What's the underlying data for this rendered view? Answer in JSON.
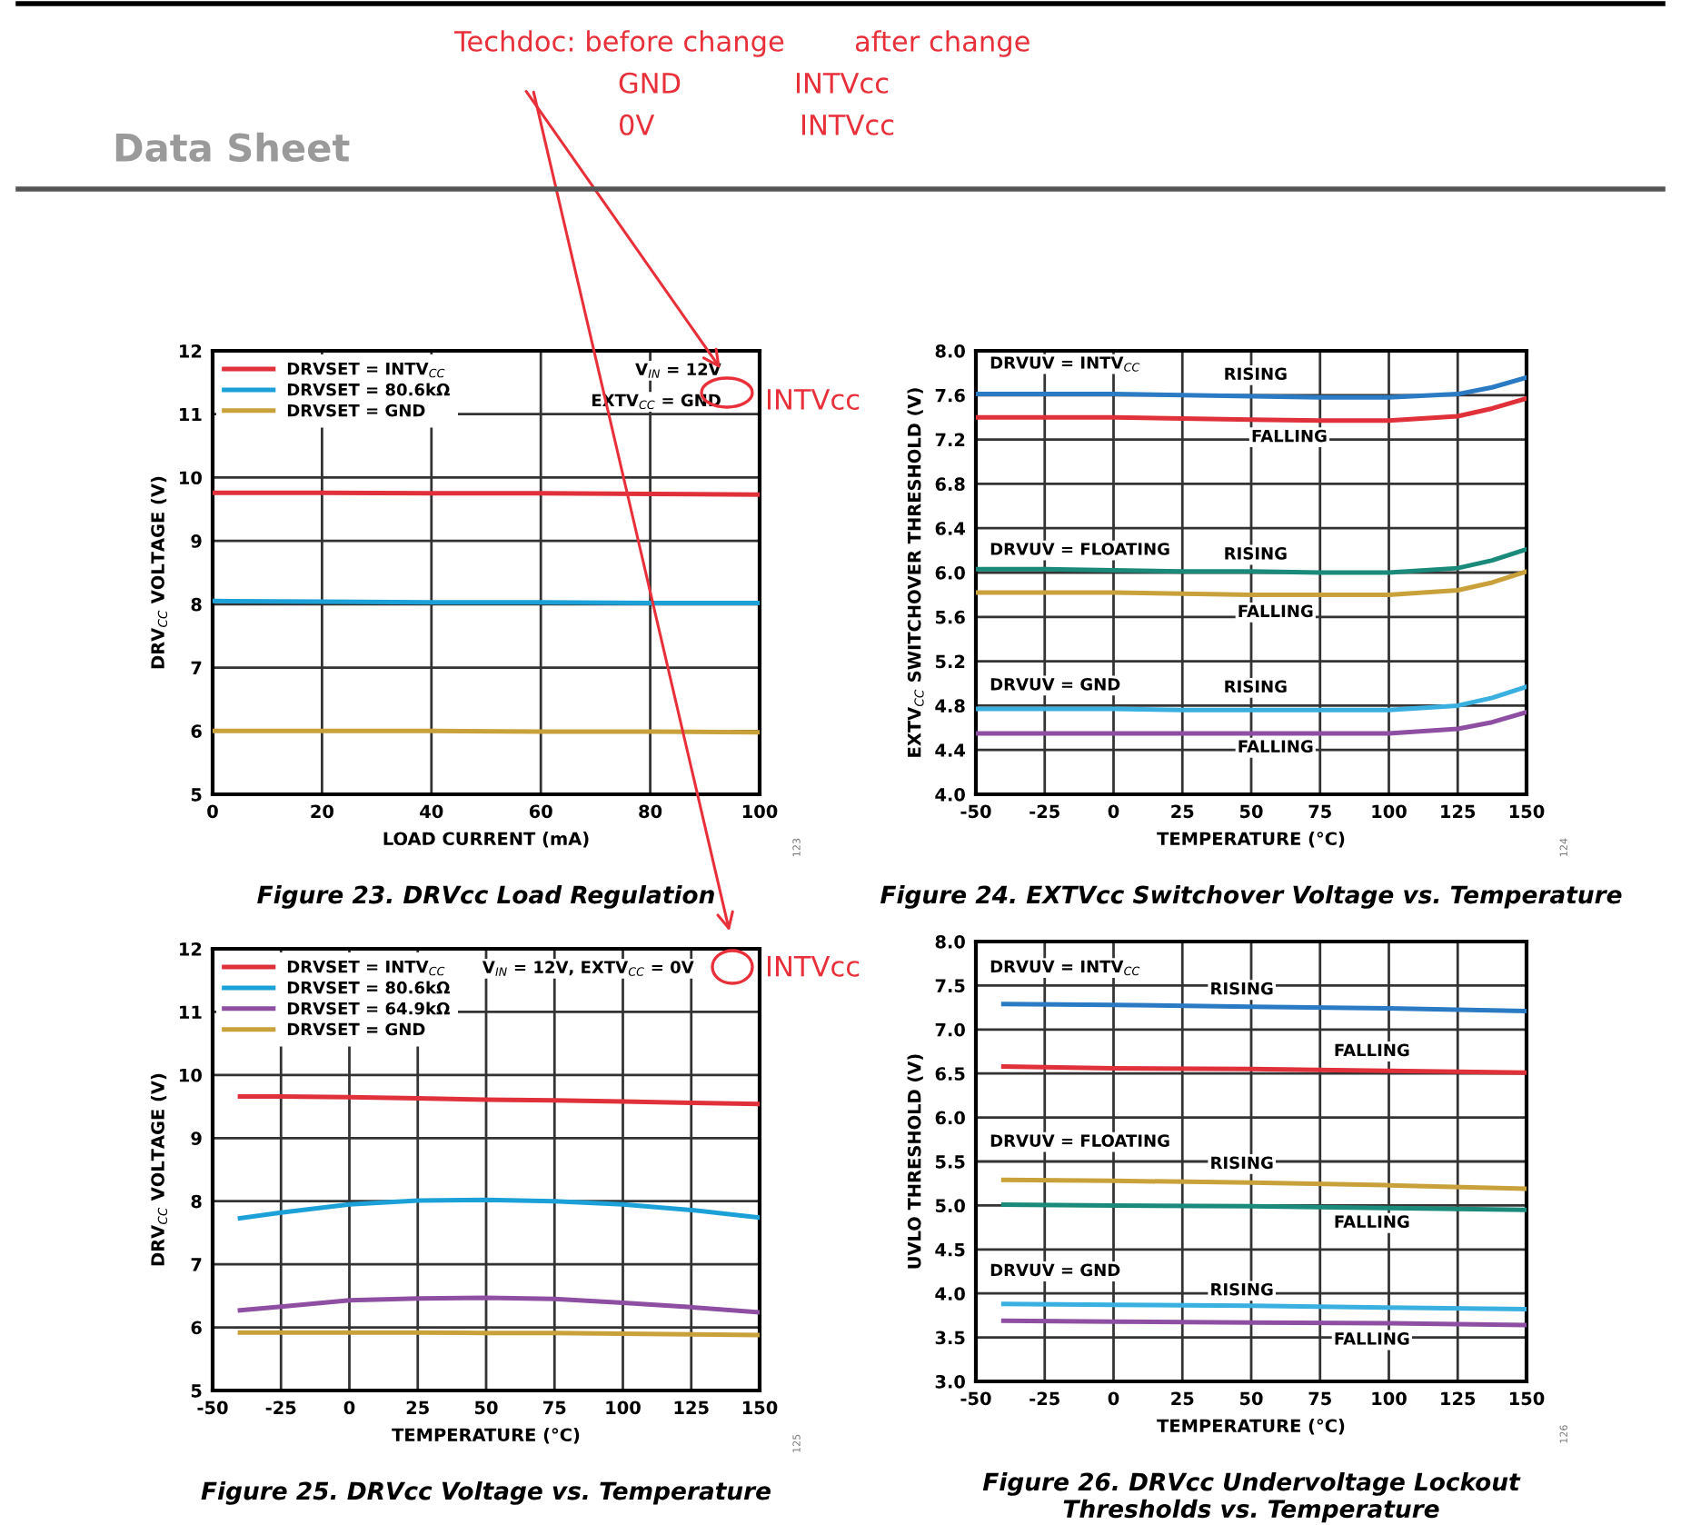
{
  "chart_data": [
    {
      "type": "other",
      "title": "Data Sheet",
      "annotations": [
        "Techdoc: before change",
        "after change",
        "GND",
        "INTVcc",
        "0V",
        "INTVcc"
      ]
    },
    {
      "type": "line",
      "title": "Figure 23. DRVcc Load Regulation",
      "xlabel": "LOAD CURRENT (mA)",
      "ylabel": "DRV$_{CC}$ VOLTAGE (V)",
      "x": [
        0,
        20,
        40,
        60,
        80,
        100
      ],
      "xlim": [
        0,
        100
      ],
      "xticks": [
        0,
        20,
        40,
        60,
        80,
        100
      ],
      "ylim": [
        5,
        12
      ],
      "yticks": [
        5,
        6,
        7,
        8,
        9,
        10,
        11,
        12
      ],
      "grid": true,
      "legend": "top left",
      "series": [
        {
          "name": "DRVSET = INTV$_{CC}$",
          "color": "#e0303a",
          "values": [
            9.76,
            9.76,
            9.75,
            9.75,
            9.74,
            9.73
          ]
        },
        {
          "name": "DRVSET = 80.6kΩ",
          "color": "#1ba1d8",
          "values": [
            8.05,
            8.04,
            8.03,
            8.03,
            8.02,
            8.02
          ]
        },
        {
          "name": "DRVSET = GND",
          "color": "#c9a13a",
          "values": [
            6.0,
            6.0,
            6.0,
            5.99,
            5.99,
            5.98
          ]
        }
      ],
      "annotations": [
        "V$_{IN}$ = 12V",
        "EXTV$_{CC}$ = GND",
        "INTVcc",
        "123"
      ]
    },
    {
      "type": "line",
      "title": "Figure 24. EXTVcc Switchover Voltage vs. Temperature",
      "xlabel": "TEMPERATURE (°C)",
      "ylabel": "EXTV$_{CC}$ SWITCHOVER THRESHOLD (V)",
      "x": [
        -50,
        -25,
        0,
        25,
        50,
        75,
        100,
        125,
        137.5,
        150
      ],
      "xlim": [
        -50,
        150
      ],
      "xticks": [
        -50,
        -25,
        0,
        25,
        50,
        75,
        100,
        125,
        150
      ],
      "ylim": [
        4,
        8
      ],
      "yticks": [
        {
          "value": 4,
          "label": "4.0"
        },
        4.4,
        4.8,
        5.2,
        5.6,
        {
          "value": 6,
          "label": "6.0"
        },
        6.4,
        6.8,
        7.2,
        7.6,
        {
          "value": 8,
          "label": "8.0"
        }
      ],
      "grid": true,
      "series": [
        {
          "color": "#2b7bc4",
          "values": [
            7.61,
            7.61,
            7.61,
            7.6,
            7.59,
            7.58,
            7.58,
            7.61,
            7.67,
            7.76
          ]
        },
        {
          "color": "#e0303a",
          "values": [
            7.4,
            7.4,
            7.4,
            7.39,
            7.38,
            7.37,
            7.37,
            7.41,
            7.48,
            7.57
          ]
        },
        {
          "color": "#1a8a7a",
          "values": [
            6.03,
            6.03,
            6.02,
            6.01,
            6.01,
            6.0,
            6.0,
            6.04,
            6.11,
            6.21
          ]
        },
        {
          "color": "#c9a13a",
          "values": [
            5.82,
            5.82,
            5.82,
            5.81,
            5.8,
            5.8,
            5.8,
            5.84,
            5.91,
            6.01
          ]
        },
        {
          "color": "#3ab0e0",
          "values": [
            4.77,
            4.77,
            4.77,
            4.76,
            4.76,
            4.76,
            4.76,
            4.8,
            4.87,
            4.97
          ]
        },
        {
          "color": "#8e4fa3",
          "values": [
            4.55,
            4.55,
            4.55,
            4.55,
            4.55,
            4.55,
            4.55,
            4.59,
            4.65,
            4.74
          ]
        }
      ],
      "annotations": [
        "DRVUV = INTV$_{CC}$",
        "RISING",
        "FALLING",
        "DRVUV = FLOATING",
        "RISING",
        "FALLING",
        "DRVUV = GND",
        "RISING",
        "FALLING",
        "124"
      ]
    },
    {
      "type": "line",
      "title": "Figure 25. DRVcc Voltage vs. Temperature",
      "xlabel": "TEMPERATURE (°C)",
      "ylabel": "DRV$_{CC}$ VOLTAGE (V)",
      "x": [
        -40,
        -25,
        0,
        25,
        50,
        75,
        100,
        125,
        150
      ],
      "xlim": [
        -50,
        150
      ],
      "xticks": [
        -50,
        -25,
        0,
        25,
        50,
        75,
        100,
        125,
        150
      ],
      "ylim": [
        5,
        12
      ],
      "yticks": [
        5,
        6,
        7,
        8,
        9,
        10,
        11,
        12
      ],
      "grid": true,
      "legend": "top left",
      "series": [
        {
          "name": "DRVSET = INTV$_{CC}$",
          "color": "#e0303a",
          "values": [
            9.66,
            9.66,
            9.65,
            9.63,
            9.61,
            9.6,
            9.58,
            9.56,
            9.54
          ]
        },
        {
          "name": "DRVSET = 80.6kΩ",
          "color": "#1ba1d8",
          "values": [
            7.73,
            7.82,
            7.95,
            8.01,
            8.02,
            8.0,
            7.95,
            7.86,
            7.74
          ]
        },
        {
          "name": "DRVSET = 64.9kΩ",
          "color": "#8e4fa3",
          "values": [
            6.27,
            6.33,
            6.43,
            6.46,
            6.47,
            6.45,
            6.39,
            6.32,
            6.24
          ]
        },
        {
          "name": "DRVSET = GND",
          "color": "#c9a13a",
          "values": [
            5.92,
            5.92,
            5.92,
            5.92,
            5.91,
            5.91,
            5.9,
            5.89,
            5.88
          ]
        }
      ],
      "annotations": [
        "V$_{IN}$ = 12V, EXTV$_{CC}$ = 0V",
        "INTVcc",
        "125"
      ]
    },
    {
      "type": "line",
      "title": "Figure 26. DRVcc Undervoltage Lockout\nThresholds vs. Temperature",
      "xlabel": "TEMPERATURE (°C)",
      "ylabel": "UVLO THRESHOLD (V)",
      "x": [
        -40,
        0,
        50,
        100,
        150
      ],
      "xlim": [
        -50,
        150
      ],
      "xticks": [
        -50,
        -25,
        0,
        25,
        50,
        75,
        100,
        125,
        150
      ],
      "ylim": [
        3,
        8
      ],
      "yticks": [
        {
          "value": 3,
          "label": "3.0"
        },
        3.5,
        {
          "value": 4,
          "label": "4.0"
        },
        4.5,
        {
          "value": 5,
          "label": "5.0"
        },
        5.5,
        {
          "value": 6,
          "label": "6.0"
        },
        6.5,
        {
          "value": 7,
          "label": "7.0"
        },
        7.5,
        {
          "value": 8,
          "label": "8.0"
        }
      ],
      "grid": true,
      "series": [
        {
          "color": "#2b7bc4",
          "values": [
            7.29,
            7.28,
            7.26,
            7.24,
            7.21
          ]
        },
        {
          "color": "#e0303a",
          "values": [
            6.58,
            6.56,
            6.55,
            6.53,
            6.51
          ]
        },
        {
          "color": "#c9a13a",
          "values": [
            5.29,
            5.28,
            5.26,
            5.23,
            5.19
          ]
        },
        {
          "color": "#1a8a7a",
          "values": [
            5.01,
            5.0,
            4.99,
            4.97,
            4.95
          ]
        },
        {
          "color": "#3ab0e0",
          "values": [
            3.88,
            3.87,
            3.86,
            3.84,
            3.82
          ]
        },
        {
          "color": "#8e4fa3",
          "values": [
            3.69,
            3.68,
            3.67,
            3.66,
            3.64
          ]
        }
      ],
      "annotations": [
        "DRVUV = INTV$_{CC}$",
        "RISING",
        "FALLING",
        "DRVUV = FLOATING",
        "RISING",
        "FALLING",
        "DRVUV = GND",
        "RISING",
        "FALLING",
        "126"
      ]
    }
  ]
}
